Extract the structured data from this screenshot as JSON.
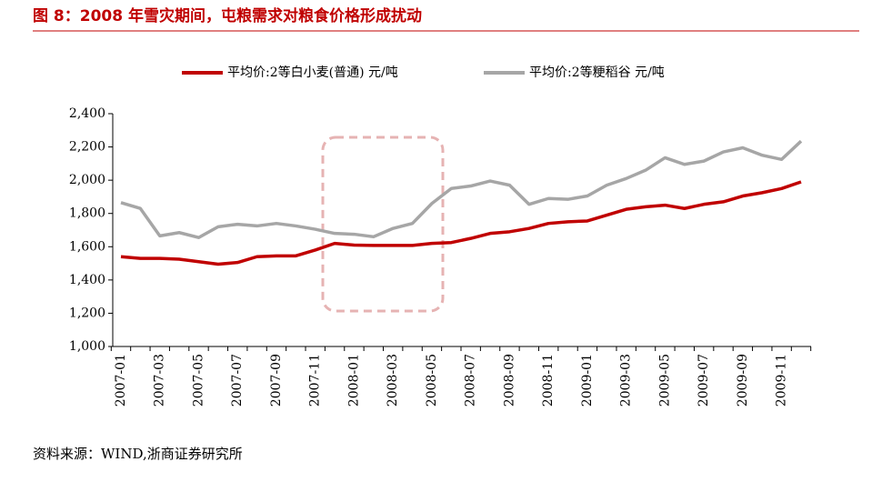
{
  "chart_data": {
    "type": "line",
    "title": "图 8：2008 年雪灾期间，屯粮需求对粮食价格形成扰动",
    "source": "资料来源：WIND,浙商证券研究所",
    "categories": [
      "2007-01",
      null,
      "2007-03",
      null,
      "2007-05",
      null,
      "2007-07",
      null,
      "2007-09",
      null,
      "2007-11",
      null,
      "2008-01",
      null,
      "2008-03",
      null,
      "2008-05",
      null,
      "2008-07",
      null,
      "2008-09",
      null,
      "2008-11",
      null,
      "2009-01",
      null,
      "2009-03",
      null,
      "2009-05",
      null,
      "2009-07",
      null,
      "2009-09",
      null,
      "2009-11",
      null
    ],
    "series": [
      {
        "name": "平均价:2等白小麦(普通) 元/吨",
        "color": "#c00000",
        "values": [
          1540,
          1530,
          1530,
          1525,
          1510,
          1495,
          1505,
          1540,
          1545,
          1545,
          1580,
          1620,
          1610,
          1608,
          1608,
          1608,
          1620,
          1625,
          1650,
          1680,
          1690,
          1710,
          1740,
          1750,
          1755,
          1790,
          1825,
          1840,
          1850,
          1830,
          1855,
          1870,
          1905,
          1925,
          1950,
          1990
        ]
      },
      {
        "name": "平均价:2等粳稻谷 元/吨",
        "color": "#a6a6a6",
        "values": [
          1865,
          1830,
          1665,
          1685,
          1655,
          1720,
          1735,
          1725,
          1740,
          1725,
          1705,
          1680,
          1675,
          1660,
          1710,
          1740,
          1860,
          1950,
          1965,
          1995,
          1970,
          1855,
          1890,
          1885,
          1905,
          1970,
          2010,
          2060,
          2135,
          2095,
          2115,
          2170,
          2195,
          2150,
          2125,
          2235
        ]
      }
    ],
    "ylim": [
      1000,
      2400
    ],
    "yticks": [
      {
        "value": 1000,
        "label": "1,000"
      },
      {
        "value": 1200,
        "label": "1,200"
      },
      {
        "value": 1400,
        "label": "1,400"
      },
      {
        "value": 1600,
        "label": "1,600"
      },
      {
        "value": 1800,
        "label": "1,800"
      },
      {
        "value": 2000,
        "label": "2,000"
      },
      {
        "value": 2200,
        "label": "2,200"
      },
      {
        "value": 2400,
        "label": "2,400"
      }
    ],
    "grid": false
  }
}
